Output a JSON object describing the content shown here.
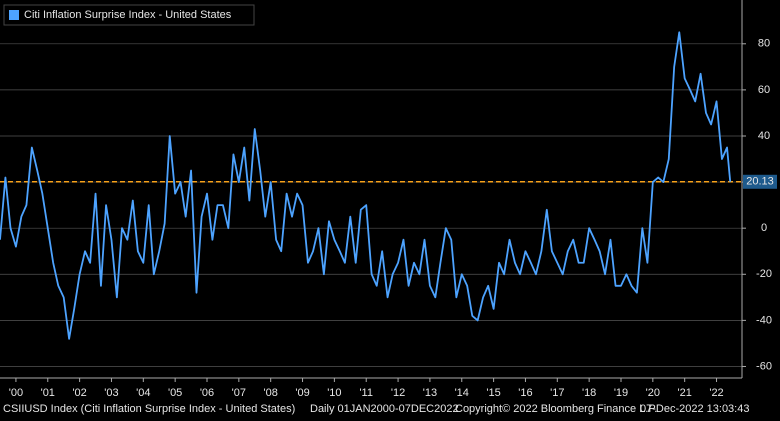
{
  "chart_data": {
    "type": "line",
    "title": "Citi Inflation Surprise Index - United States",
    "footer": [
      "CSIIUSD Index (Citi Inflation Surprise Index - United States)",
      "Daily 01JAN2000-07DEC2022",
      "Copyright© 2022 Bloomberg Finance L.P.",
      "07-Dec-2022 13:03:43"
    ],
    "x": [
      2000,
      2000.17,
      2000.33,
      2000.5,
      2000.67,
      2000.83,
      2001,
      2001.17,
      2001.33,
      2001.5,
      2001.67,
      2001.83,
      2002,
      2002.17,
      2002.33,
      2002.5,
      2002.67,
      2002.83,
      2003,
      2003.17,
      2003.33,
      2003.5,
      2003.67,
      2003.83,
      2004,
      2004.17,
      2004.33,
      2004.5,
      2004.67,
      2004.83,
      2005,
      2005.17,
      2005.33,
      2005.5,
      2005.67,
      2005.83,
      2006,
      2006.17,
      2006.33,
      2006.5,
      2006.67,
      2006.83,
      2007,
      2007.17,
      2007.33,
      2007.5,
      2007.67,
      2007.83,
      2008,
      2008.17,
      2008.33,
      2008.5,
      2008.67,
      2008.83,
      2009,
      2009.17,
      2009.33,
      2009.5,
      2009.67,
      2009.83,
      2010,
      2010.17,
      2010.33,
      2010.5,
      2010.67,
      2010.83,
      2011,
      2011.17,
      2011.33,
      2011.5,
      2011.67,
      2011.83,
      2012,
      2012.17,
      2012.33,
      2012.5,
      2012.67,
      2012.83,
      2013,
      2013.17,
      2013.33,
      2013.5,
      2013.67,
      2013.83,
      2014,
      2014.17,
      2014.33,
      2014.5,
      2014.67,
      2014.83,
      2015,
      2015.17,
      2015.33,
      2015.5,
      2015.67,
      2015.83,
      2016,
      2016.17,
      2016.33,
      2016.5,
      2016.67,
      2016.83,
      2017,
      2017.17,
      2017.33,
      2017.5,
      2017.67,
      2017.83,
      2018,
      2018.17,
      2018.33,
      2018.5,
      2018.67,
      2018.83,
      2019,
      2019.17,
      2019.33,
      2019.5,
      2019.67,
      2019.83,
      2020,
      2020.17,
      2020.33,
      2020.5,
      2020.67,
      2020.83,
      2021,
      2021.17,
      2021.33,
      2021.5,
      2021.67,
      2021.83,
      2022,
      2022.17,
      2022.33,
      2022.5,
      2022.67,
      2022.83,
      2022.93
    ],
    "series": [
      {
        "name": "Citi Inflation Surprise Index - United States",
        "color": "#4da3ff",
        "values": [
          -5,
          22,
          0,
          -8,
          5,
          10,
          35,
          25,
          15,
          0,
          -15,
          -25,
          -30,
          -48,
          -35,
          -20,
          -10,
          -15,
          15,
          -25,
          10,
          -5,
          -30,
          0,
          -5,
          12,
          -10,
          -15,
          10,
          -20,
          -10,
          2,
          40,
          15,
          20,
          5,
          25,
          -28,
          5,
          15,
          -5,
          10,
          10,
          0,
          32,
          20,
          35,
          12,
          43,
          25,
          5,
          20,
          -5,
          -10,
          15,
          5,
          15,
          10,
          -15,
          -10,
          0,
          -20,
          3,
          -5,
          -10,
          -15,
          5,
          -15,
          8,
          10,
          -20,
          -25,
          -10,
          -30,
          -20,
          -15,
          -5,
          -25,
          -15,
          -20,
          -5,
          -25,
          -30,
          -15,
          0,
          -5,
          -30,
          -20,
          -25,
          -38,
          -40,
          -30,
          -25,
          -35,
          -15,
          -20,
          -5,
          -15,
          -20,
          -10,
          -15,
          -20,
          -10,
          8,
          -10,
          -15,
          -20,
          -10,
          -5,
          -15,
          -15,
          0,
          -5,
          -10,
          -20,
          -5,
          -25,
          -25,
          -20,
          -25,
          -28,
          0,
          -15,
          20,
          22,
          20,
          30,
          70,
          85,
          65,
          60,
          55,
          67,
          50,
          45,
          55,
          30,
          35,
          20.13
        ]
      }
    ],
    "reference_line": {
      "value": 20.13,
      "color": "#f7a21b"
    },
    "xlim": [
      2000,
      2023.3
    ],
    "xticks": [
      {
        "value": 2000.5,
        "label": "'00"
      },
      {
        "value": 2001.5,
        "label": "'01"
      },
      {
        "value": 2002.5,
        "label": "'02"
      },
      {
        "value": 2003.5,
        "label": "'03"
      },
      {
        "value": 2004.5,
        "label": "'04"
      },
      {
        "value": 2005.5,
        "label": "'05"
      },
      {
        "value": 2006.5,
        "label": "'06"
      },
      {
        "value": 2007.5,
        "label": "'07"
      },
      {
        "value": 2008.5,
        "label": "'08"
      },
      {
        "value": 2009.5,
        "label": "'09"
      },
      {
        "value": 2010.5,
        "label": "'10"
      },
      {
        "value": 2011.5,
        "label": "'11"
      },
      {
        "value": 2012.5,
        "label": "'12"
      },
      {
        "value": 2013.5,
        "label": "'13"
      },
      {
        "value": 2014.5,
        "label": "'14"
      },
      {
        "value": 2015.5,
        "label": "'15"
      },
      {
        "value": 2016.5,
        "label": "'16"
      },
      {
        "value": 2017.5,
        "label": "'17"
      },
      {
        "value": 2018.5,
        "label": "'18"
      },
      {
        "value": 2019.5,
        "label": "'19"
      },
      {
        "value": 2020.5,
        "label": "'20"
      },
      {
        "value": 2021.5,
        "label": "'21"
      },
      {
        "value": 2022.5,
        "label": "'22"
      }
    ],
    "ylim": [
      -65,
      99
    ],
    "yticks": [
      -60,
      -40,
      -20,
      0,
      20,
      40,
      60,
      80
    ],
    "grid": true
  }
}
